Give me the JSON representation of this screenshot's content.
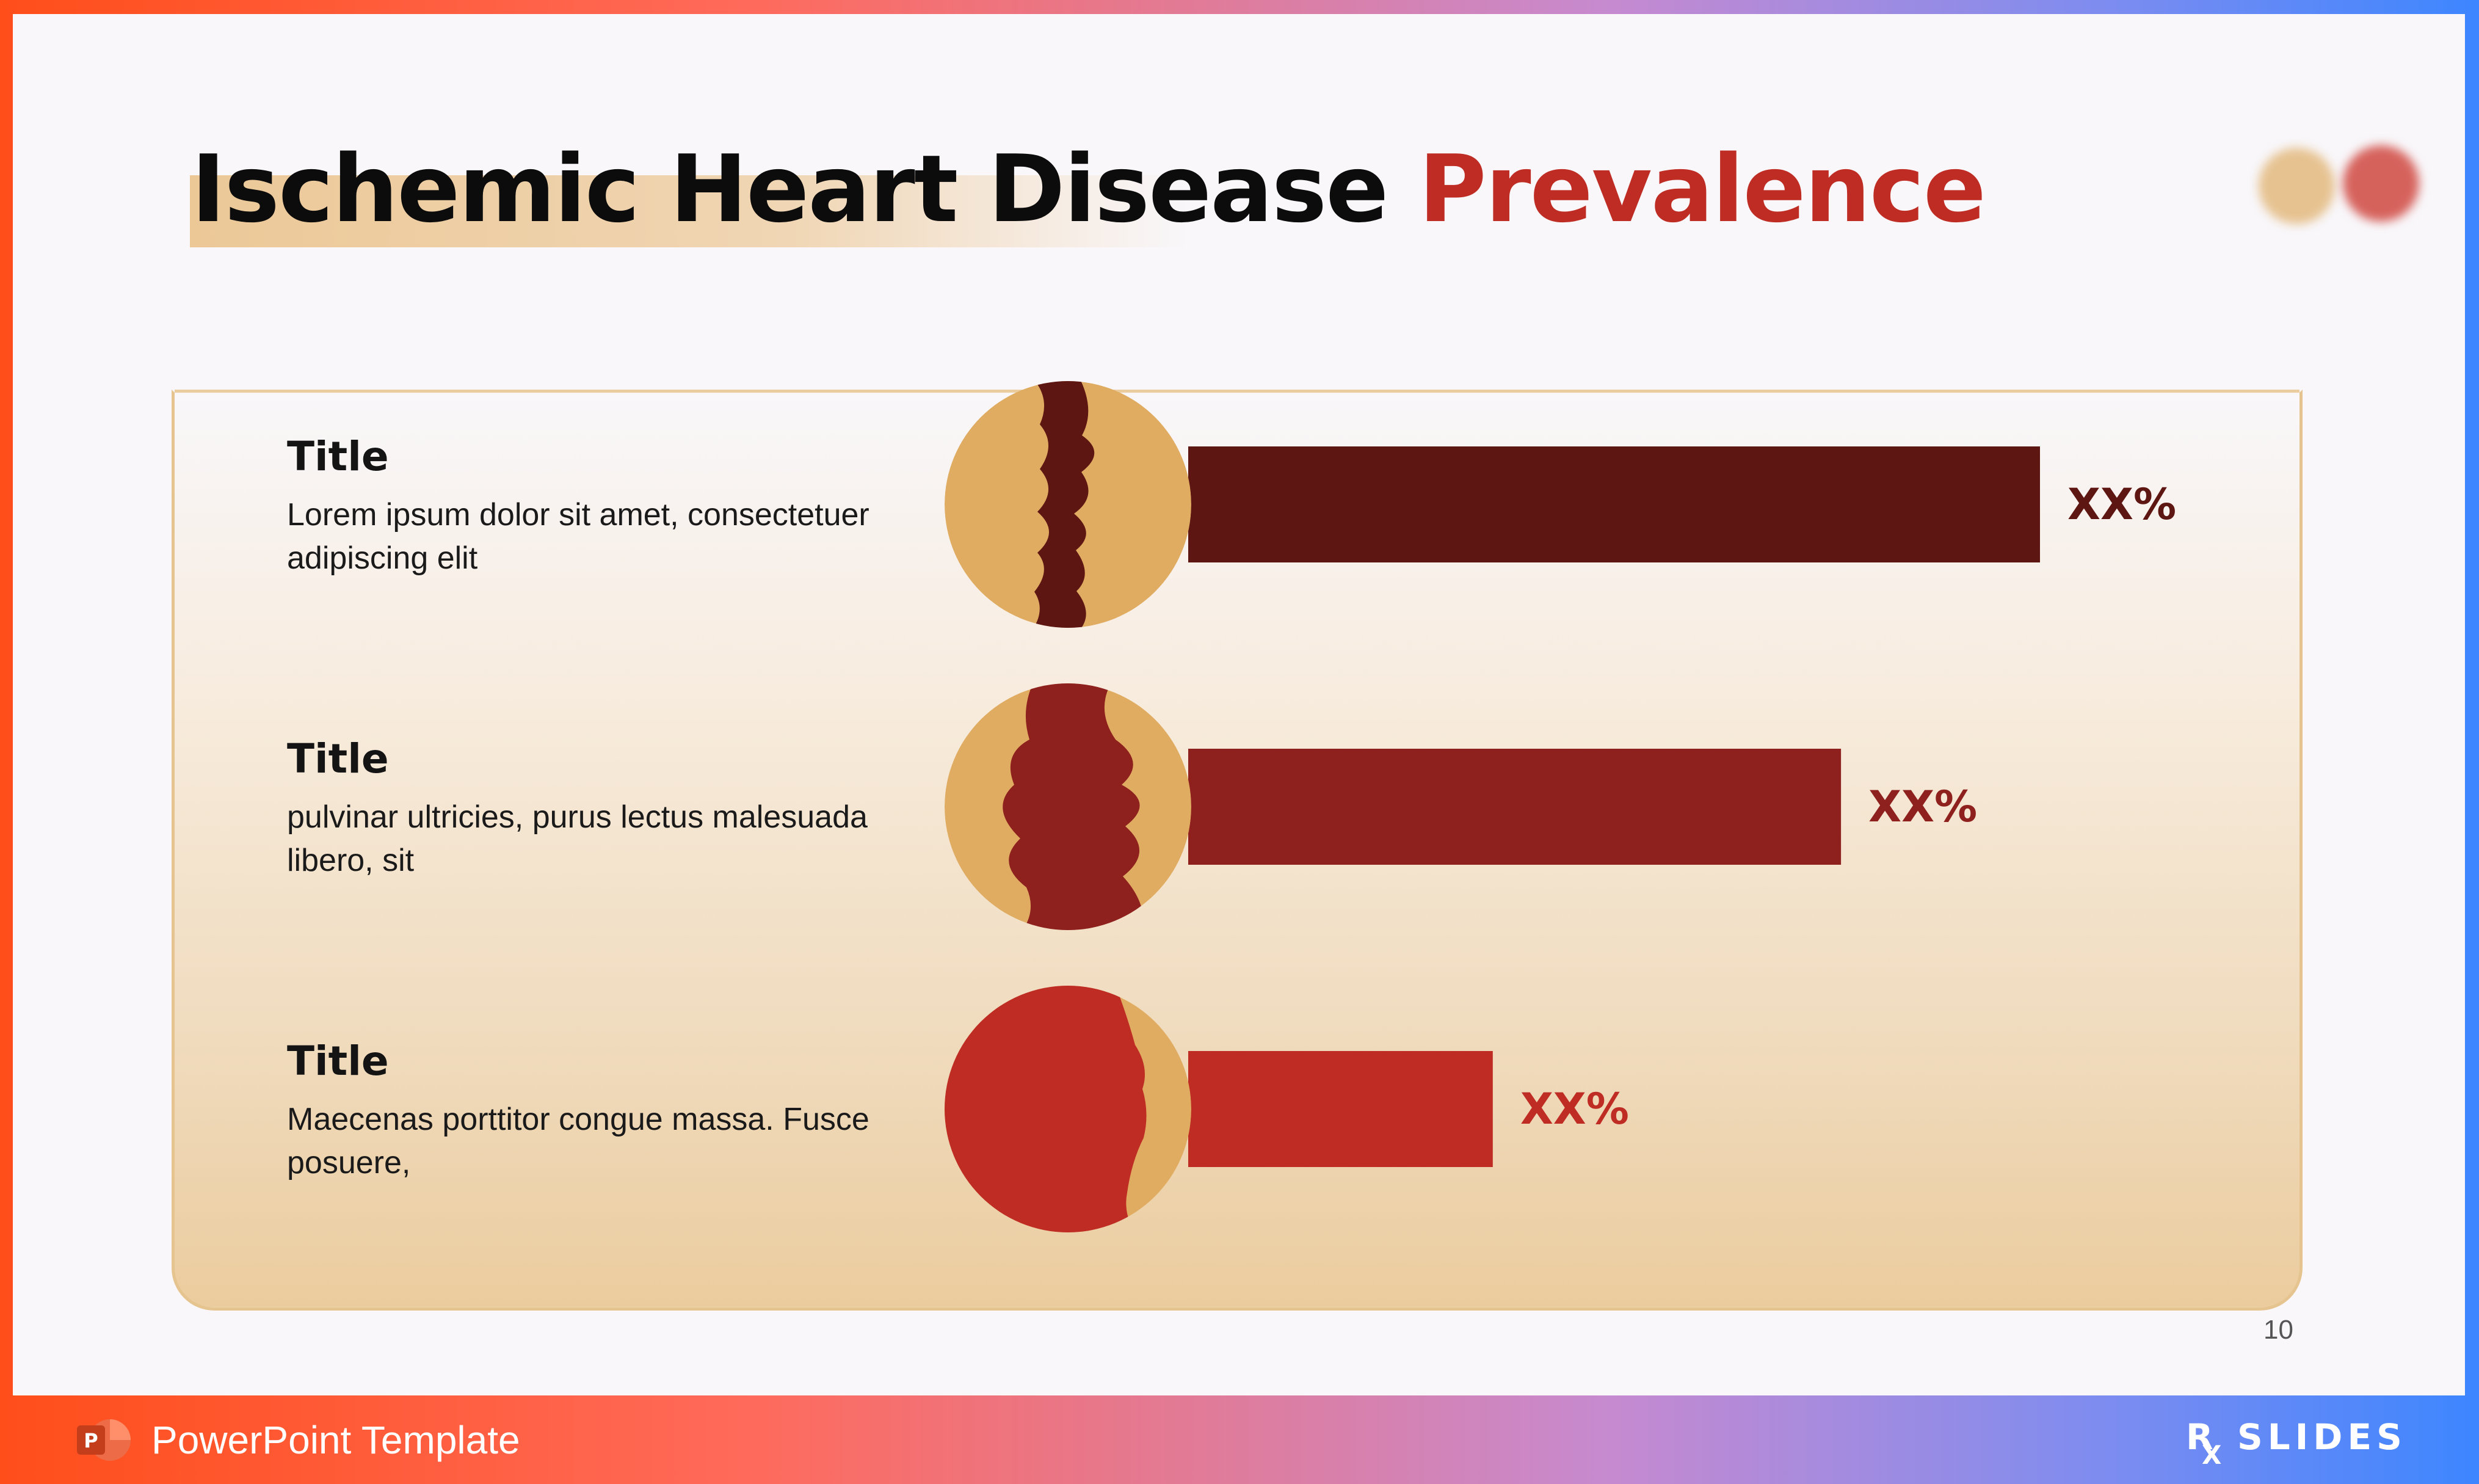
{
  "slide": {
    "title_main": "Ischemic Heart Disease",
    "title_highlight": "Prevalence",
    "page_number": "10"
  },
  "rows": [
    {
      "title": "Title",
      "text": "Lorem ipsum dolor sit amet, consectetuer adipiscing elit"
    },
    {
      "title": "Title",
      "text": "pulvinar ultricies, purus lectus malesuada libero, sit"
    },
    {
      "title": "Title",
      "text": "Maecenas porttitor congue massa. Fusce posuere,"
    }
  ],
  "chart_data": {
    "type": "bar",
    "orientation": "horizontal",
    "categories": [
      "Title",
      "Title",
      "Title"
    ],
    "values": [
      85,
      65,
      30
    ],
    "value_labels": [
      "XX%",
      "XX%",
      "XX%"
    ],
    "xlim": [
      0,
      100
    ],
    "grid": false,
    "colors": [
      "#5e1612",
      "#8e201e",
      "#bf2c24"
    ]
  },
  "colors": {
    "accent_red": "#bf2c24",
    "dark_red": "#5e1612",
    "mid_red": "#8e201e",
    "tan": "#e0ac62"
  },
  "footer": {
    "label": "PowerPoint Template",
    "icon": "powerpoint-icon",
    "brand": "RX SLIDES"
  }
}
